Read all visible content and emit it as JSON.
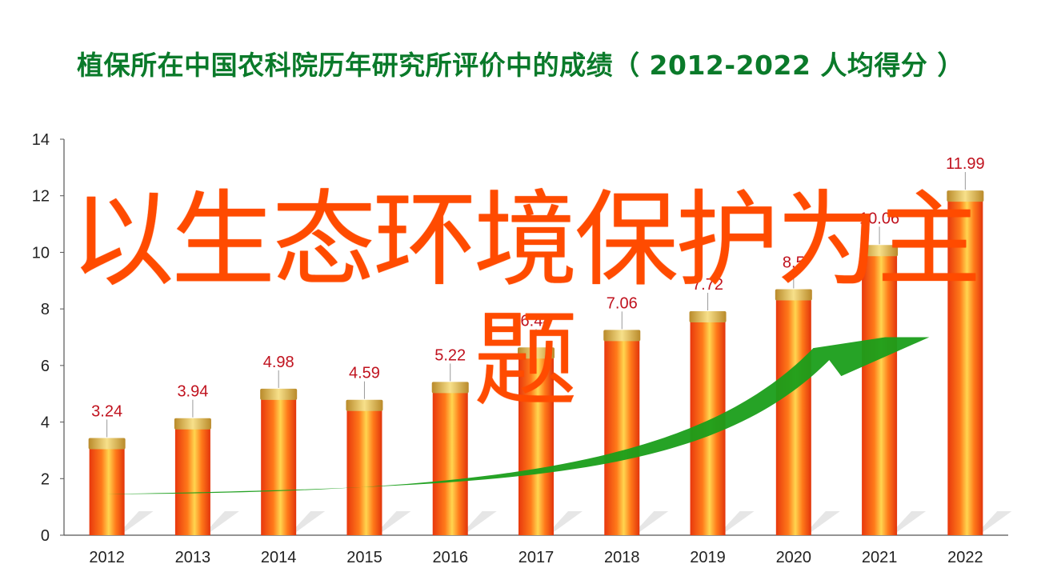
{
  "title": "植保所在中国农科院历年研究所评价中的成绩（ 2012-2022  人均得分 ）",
  "overlay_text": "以生态环境保护为主题",
  "colors": {
    "title": "#0a7a2a",
    "bar": "#f4511e",
    "bar_highlight": "#ffd54f",
    "bar_cap": "#e0b84a",
    "label": "#c0121e",
    "overlay": "#ff4b00",
    "arrow": "#1a9e1a",
    "axis": "#555555"
  },
  "chart_data": {
    "type": "bar",
    "categories": [
      "2012",
      "2013",
      "2014",
      "2015",
      "2016",
      "2017",
      "2018",
      "2019",
      "2020",
      "2021",
      "2022"
    ],
    "values": [
      3.24,
      3.94,
      4.98,
      4.59,
      5.22,
      6.44,
      7.06,
      7.72,
      8.5,
      10.06,
      11.99
    ],
    "value_labels": [
      "3.24",
      "3.94",
      "4.98",
      "4.59",
      "5.22",
      "6.44",
      "7.06",
      "7.72",
      "8.5",
      "10.06",
      "11.99"
    ],
    "ylim": [
      0,
      14
    ],
    "yticks": [
      0,
      2,
      4,
      6,
      8,
      10,
      12,
      14
    ],
    "ytick_labels": [
      "0",
      "2",
      "4",
      "6",
      "8",
      "10",
      "12",
      "14"
    ],
    "trend_arrow": true,
    "legend": "none",
    "grid": false
  }
}
